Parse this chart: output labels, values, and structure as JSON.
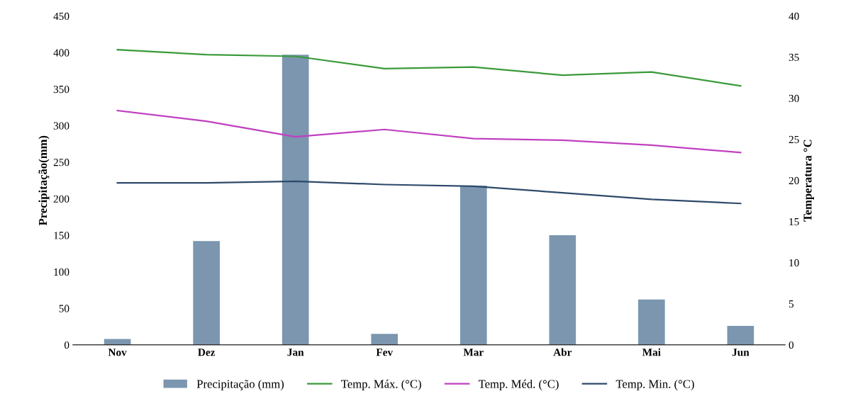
{
  "chart_data": {
    "type": "bar",
    "xlabel": null,
    "ylabel": "Precipitação(mm)",
    "y2label": "Temperatura °C",
    "categories": [
      "Nov",
      "Dez",
      "Jan",
      "Fev",
      "Mar",
      "Abr",
      "Mai",
      "Jun"
    ],
    "series": [
      {
        "name": "Precipitação (mm)",
        "color": "#7b96ae",
        "values": [
          8,
          142,
          397,
          15,
          218,
          150,
          62,
          26
        ]
      },
      {
        "name": "Temp. Máx. (°C)",
        "type": "line",
        "axis": "y2",
        "color": "#3a9a3a",
        "values": [
          35.9,
          35.3,
          35.1,
          33.6,
          33.8,
          32.8,
          33.2,
          31.5
        ]
      },
      {
        "name": "Temp. Méd. (°C)",
        "type": "line",
        "axis": "y2",
        "color": "#c040c0",
        "values": [
          28.5,
          27.2,
          25.3,
          26.2,
          25.1,
          24.9,
          24.3,
          23.4
        ]
      },
      {
        "name": "Temp. Min. (°C)",
        "type": "line",
        "axis": "y2",
        "color": "#2e4a6b",
        "values": [
          19.7,
          19.7,
          19.9,
          19.5,
          19.3,
          18.5,
          17.7,
          17.2
        ]
      }
    ],
    "ylim": [
      0,
      450
    ],
    "yticks": [
      0,
      50,
      100,
      150,
      200,
      250,
      300,
      350,
      400,
      450
    ],
    "y2lim": [
      0,
      40
    ],
    "y2ticks": [
      0,
      5,
      10,
      15,
      20,
      25,
      30,
      35,
      40
    ],
    "grid": false,
    "legend": "bottom",
    "marker": "none",
    "line_style": "solid"
  }
}
